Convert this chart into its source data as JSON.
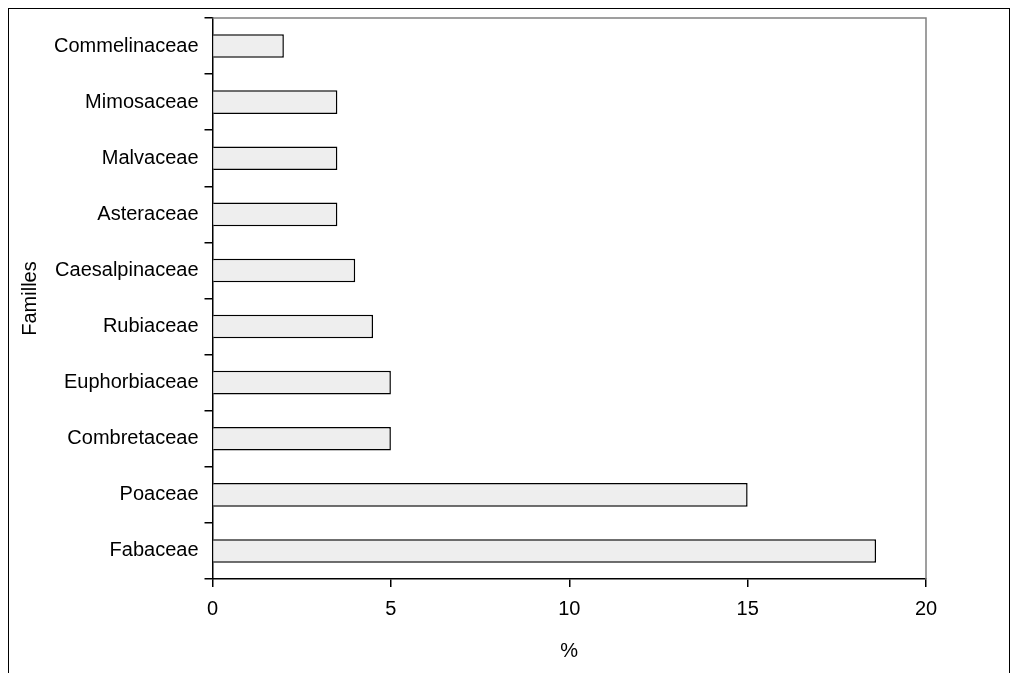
{
  "chart_data": {
    "type": "bar",
    "orientation": "horizontal",
    "xlabel": "%",
    "ylabel": "Familles",
    "categories": [
      "Commelinaceae",
      "Mimosaceae",
      "Malvaceae",
      "Asteraceae",
      "Caesalpinaceae",
      "Rubiaceae",
      "Euphorbiaceae",
      "Combretaceae",
      "Poaceae",
      "Fabaceae"
    ],
    "values": [
      2,
      3.5,
      3.5,
      3.5,
      4,
      4.5,
      5,
      5,
      15,
      18.6
    ],
    "color": "#eeeeee",
    "xlim": [
      0,
      20
    ],
    "xticks": [
      0,
      5,
      10,
      15,
      20
    ],
    "grid": false,
    "legend": false
  }
}
